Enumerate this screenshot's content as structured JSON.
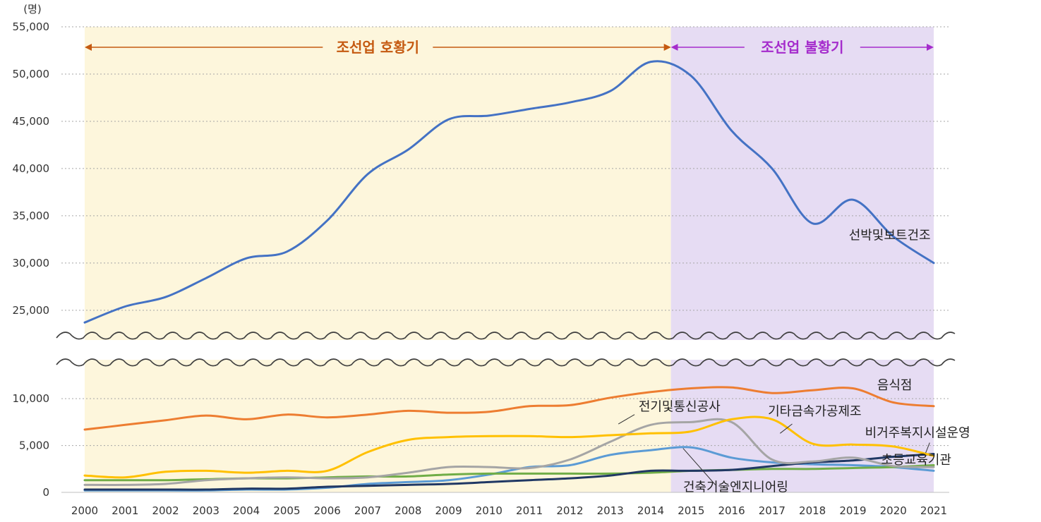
{
  "chart_data": {
    "type": "line",
    "unit_label": "(명)",
    "categories": [
      "2000",
      "2001",
      "2002",
      "2003",
      "2004",
      "2005",
      "2006",
      "2007",
      "2008",
      "2009",
      "2010",
      "2011",
      "2012",
      "2013",
      "2014",
      "2015",
      "2016",
      "2017",
      "2018",
      "2019",
      "2020",
      "2021"
    ],
    "y_axis_upper": {
      "range": [
        22000,
        55000
      ],
      "ticks": [
        "25,000",
        "30,000",
        "35,000",
        "40,000",
        "45,000",
        "50,000",
        "55,000"
      ],
      "tick_values": [
        25000,
        30000,
        35000,
        40000,
        45000,
        50000,
        55000
      ]
    },
    "y_axis_lower": {
      "range": [
        0,
        14000
      ],
      "ticks": [
        "0",
        "5,000",
        "10,000"
      ],
      "tick_values": [
        0,
        5000,
        10000
      ]
    },
    "axis_break": true,
    "periods": [
      {
        "label": "조선업 호황기",
        "start": 2000,
        "end": 2014.5,
        "color": "#fdf6dc",
        "text_color": "#c55a11"
      },
      {
        "label": "조선업 불황기",
        "start": 2014.5,
        "end": 2021,
        "color": "#e6dcf3",
        "text_color": "#a52ccc"
      }
    ],
    "series": [
      {
        "name": "선박및보트건조",
        "color": "#4472c4",
        "axis": "upper",
        "label_pos": [
          2018.9,
          32500
        ],
        "values": [
          23700,
          25400,
          26400,
          28400,
          30500,
          31200,
          34500,
          39400,
          42000,
          45200,
          45600,
          46300,
          47000,
          48200,
          51300,
          49800,
          44000,
          40000,
          34200,
          36700,
          32800,
          30000
        ]
      },
      {
        "name": "음식점",
        "color": "#ed7d31",
        "axis": "lower",
        "label_pos": [
          2019.6,
          11000
        ],
        "values": [
          6700,
          7200,
          7700,
          8200,
          7800,
          8300,
          8000,
          8300,
          8700,
          8500,
          8600,
          9200,
          9300,
          10100,
          10700,
          11100,
          11200,
          10600,
          10900,
          11100,
          9600,
          9200
        ]
      },
      {
        "name": "기타금속가공제조",
        "color": "#ffc000",
        "axis": "lower",
        "label_pos": [
          2016.9,
          8200
        ],
        "values": [
          1800,
          1600,
          2200,
          2300,
          2100,
          2300,
          2300,
          4300,
          5600,
          5900,
          6000,
          6000,
          5900,
          6100,
          6300,
          6500,
          7800,
          7800,
          5200,
          5100,
          4900,
          3900
        ]
      },
      {
        "name": "전기및통신공사",
        "color": "#a5a5a5",
        "axis": "lower",
        "label_pos": [
          2013.7,
          8700
        ],
        "values": [
          800,
          800,
          900,
          1300,
          1500,
          1600,
          1500,
          1600,
          2100,
          2700,
          2700,
          2600,
          3500,
          5400,
          7200,
          7500,
          7500,
          3500,
          3300,
          3700,
          2800,
          2700
        ]
      },
      {
        "name": "비거주복지시설운영",
        "color": "#203864",
        "axis": "lower",
        "label_pos": [
          2019.3,
          5900
        ],
        "values": [
          300,
          300,
          300,
          300,
          400,
          400,
          600,
          700,
          800,
          900,
          1100,
          1300,
          1500,
          1800,
          2300,
          2300,
          2400,
          2800,
          3200,
          3400,
          3800,
          4100
        ]
      },
      {
        "name": "초등교육기관",
        "color": "#70ad47",
        "axis": "lower",
        "label_pos": [
          2019.7,
          3000
        ],
        "values": [
          1300,
          1300,
          1300,
          1400,
          1500,
          1500,
          1600,
          1700,
          1700,
          1900,
          2000,
          2000,
          2000,
          2000,
          2100,
          2300,
          2400,
          2500,
          2500,
          2600,
          2700,
          2900
        ]
      },
      {
        "name": "건축기술엔지니어링",
        "color": "#5b9bd5",
        "axis": "lower",
        "label_pos": [
          2014.8,
          100
        ],
        "values": [
          200,
          200,
          200,
          200,
          300,
          300,
          500,
          900,
          1100,
          1300,
          1900,
          2700,
          2900,
          4000,
          4500,
          4800,
          3700,
          3200,
          3000,
          2900,
          2700,
          2300
        ]
      }
    ]
  }
}
